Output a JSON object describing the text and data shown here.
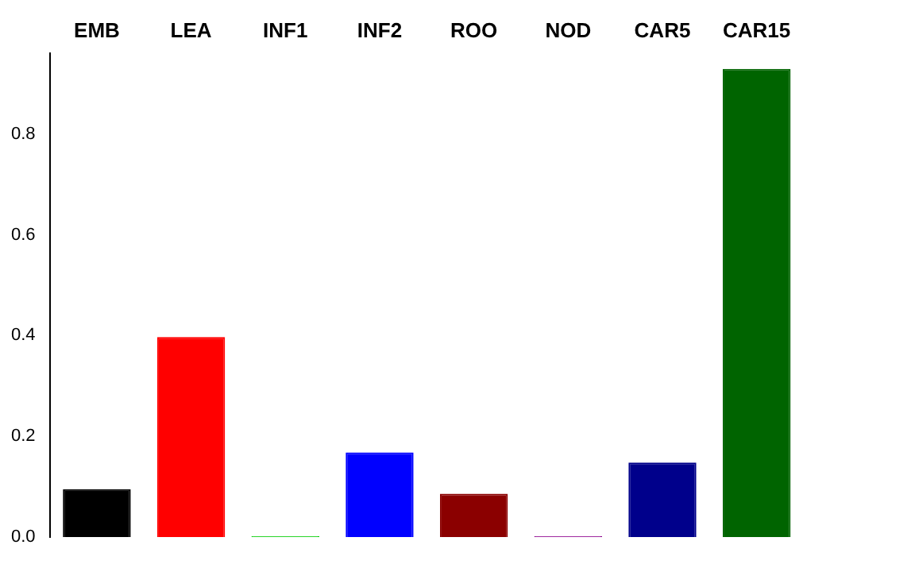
{
  "chart_data": {
    "type": "bar",
    "categories": [
      "EMB",
      "LEA",
      "INF1",
      "INF2",
      "ROO",
      "NOD",
      "CAR5",
      "CAR15"
    ],
    "values": [
      0.095,
      0.397,
      0.002,
      0.168,
      0.086,
      0.002,
      0.148,
      0.929
    ],
    "colors": [
      "#000000",
      "#ff0000",
      "#00cd00",
      "#0000ff",
      "#8b0000",
      "#8b008b",
      "#00008b",
      "#006400"
    ],
    "ylim": [
      0,
      0.96
    ],
    "yticks": [
      {
        "value": 0,
        "label": "0.0"
      },
      {
        "value": 0.2,
        "label": "0.2"
      },
      {
        "value": 0.4,
        "label": "0.4"
      },
      {
        "value": 0.6,
        "label": "0.6"
      },
      {
        "value": 0.8,
        "label": "0.8"
      }
    ],
    "grid": false,
    "legend": false
  }
}
